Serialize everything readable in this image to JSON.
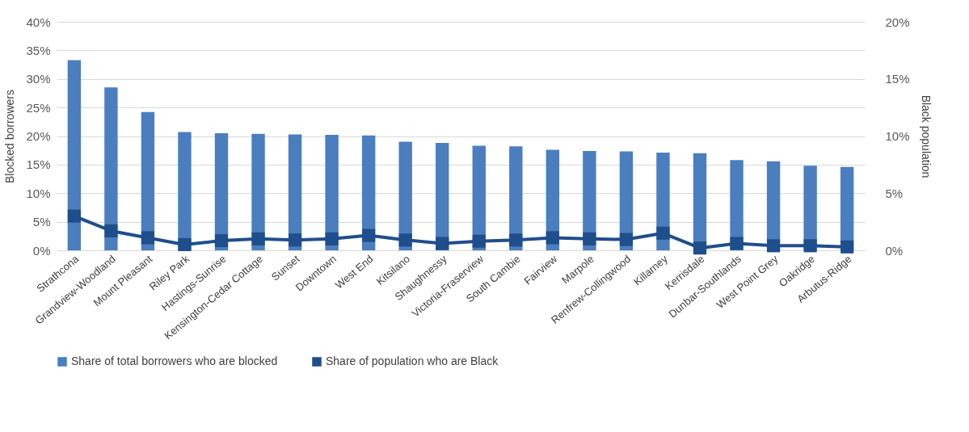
{
  "chart_data": {
    "type": "bar",
    "categories": [
      "Strathcona",
      "Grandview-Woodland",
      "Mount Pleasant",
      "Riley Park",
      "Hastings-Sunrise",
      "Kensington-Cedar Cottage",
      "Sunset",
      "Downtown",
      "West End",
      "Kitsilano",
      "Shaughnessy",
      "Victoria-Fraserview",
      "South Cambie",
      "Fairview",
      "Marpole",
      "Renfrew-Collingwood",
      "Killarney",
      "Kerrisdale",
      "Dunbar-Southlands",
      "West Point Grey",
      "Oakridge",
      "Arbutus-Ridge"
    ],
    "series": [
      {
        "name": "Share of total borrowers who are blocked",
        "color": "#4a7ebf",
        "values": [
          33.3,
          28.5,
          24.2,
          20.7,
          20.5,
          20.4,
          20.3,
          20.2,
          20.1,
          19.0,
          18.8,
          18.3,
          18.2,
          17.6,
          17.4,
          17.3,
          17.1,
          17.0,
          15.8,
          15.6,
          14.8,
          14.6
        ]
      },
      {
        "name": "Share of population who are Black",
        "type": "line",
        "axis": "y2",
        "color": "#1f4e8c",
        "marker": "square",
        "values": [
          3.0,
          1.7,
          1.1,
          0.5,
          0.85,
          1.0,
          0.9,
          1.0,
          1.3,
          0.9,
          0.6,
          0.8,
          0.9,
          1.1,
          1.0,
          0.95,
          1.5,
          0.2,
          0.6,
          0.4,
          0.4,
          0.3
        ]
      }
    ],
    "ylabel": "Blocked borrowers",
    "y2label": "Black population",
    "ylim": [
      0,
      40
    ],
    "yticks": [
      {
        "value": 0,
        "label": "0%"
      },
      {
        "value": 5,
        "label": "5%"
      },
      {
        "value": 10,
        "label": "10%"
      },
      {
        "value": 15,
        "label": "15%"
      },
      {
        "value": 20,
        "label": "20%"
      },
      {
        "value": 25,
        "label": "25%"
      },
      {
        "value": 30,
        "label": "30%"
      },
      {
        "value": 35,
        "label": "35%"
      },
      {
        "value": 40,
        "label": "40%"
      }
    ],
    "y2lim": [
      0,
      20
    ],
    "y2ticks": [
      {
        "value": 0,
        "label": "0%"
      },
      {
        "value": 5,
        "label": "5%"
      },
      {
        "value": 10,
        "label": "10%"
      },
      {
        "value": 15,
        "label": "15%"
      },
      {
        "value": 20,
        "label": "20%"
      }
    ],
    "grid": "y",
    "legend": "bottom"
  }
}
